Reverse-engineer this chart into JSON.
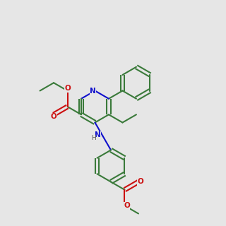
{
  "bg_color": "#e6e6e6",
  "bond_color": "#3a7a3a",
  "nitrogen_color": "#1010cc",
  "oxygen_color": "#cc1010",
  "lw": 1.5,
  "fs": 6.5,
  "bl": 0.075
}
